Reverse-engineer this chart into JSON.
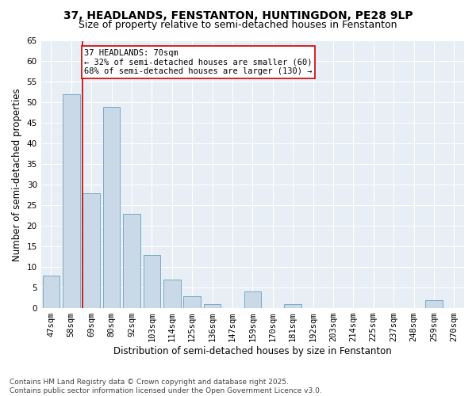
{
  "title1": "37, HEADLANDS, FENSTANTON, HUNTINGDON, PE28 9LP",
  "title2": "Size of property relative to semi-detached houses in Fenstanton",
  "xlabel": "Distribution of semi-detached houses by size in Fenstanton",
  "ylabel": "Number of semi-detached properties",
  "categories": [
    "47sqm",
    "58sqm",
    "69sqm",
    "80sqm",
    "92sqm",
    "103sqm",
    "114sqm",
    "125sqm",
    "136sqm",
    "147sqm",
    "159sqm",
    "170sqm",
    "181sqm",
    "192sqm",
    "203sqm",
    "214sqm",
    "225sqm",
    "237sqm",
    "248sqm",
    "259sqm",
    "270sqm"
  ],
  "values": [
    8,
    52,
    28,
    49,
    23,
    13,
    7,
    3,
    1,
    0,
    4,
    0,
    1,
    0,
    0,
    0,
    0,
    0,
    0,
    2,
    0
  ],
  "bar_color": "#c9d9e8",
  "bar_edge_color": "#7aaabf",
  "highlight_index": 2,
  "highlight_line_color": "#cc0000",
  "annotation_text": "37 HEADLANDS: 70sqm\n← 32% of semi-detached houses are smaller (60)\n68% of semi-detached houses are larger (130) →",
  "annotation_box_color": "#ffffff",
  "annotation_box_edge_color": "#cc0000",
  "ylim": [
    0,
    65
  ],
  "yticks": [
    0,
    5,
    10,
    15,
    20,
    25,
    30,
    35,
    40,
    45,
    50,
    55,
    60,
    65
  ],
  "footer": "Contains HM Land Registry data © Crown copyright and database right 2025.\nContains public sector information licensed under the Open Government Licence v3.0.",
  "bg_color": "#ffffff",
  "plot_bg_color": "#e8eef5",
  "grid_color": "#ffffff",
  "title_fontsize": 10,
  "subtitle_fontsize": 9,
  "axis_label_fontsize": 8.5,
  "tick_fontsize": 7.5,
  "annotation_fontsize": 7.5,
  "footer_fontsize": 6.5
}
